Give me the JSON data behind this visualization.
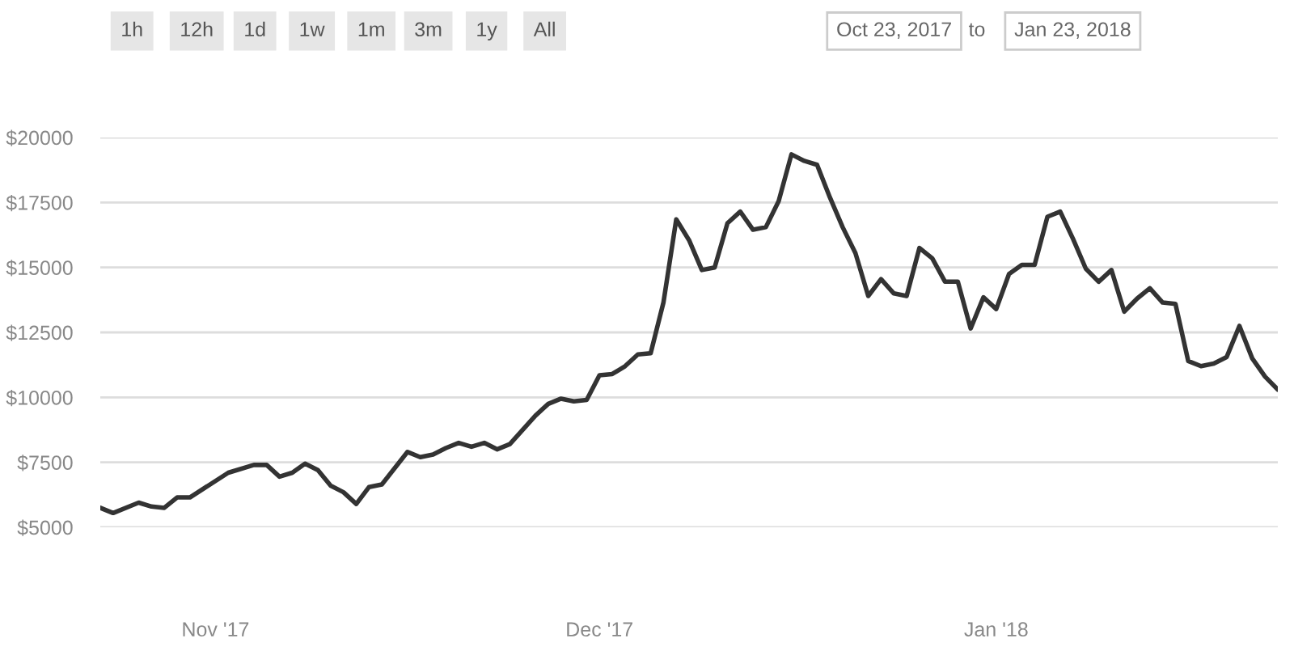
{
  "chart_data": {
    "type": "line",
    "x": [
      "2017-10-23",
      "2017-10-24",
      "2017-10-26",
      "2017-10-27",
      "2017-10-28",
      "2017-10-29",
      "2017-10-30",
      "2017-11-02",
      "2017-11-04",
      "2017-11-05",
      "2017-11-06",
      "2017-11-07",
      "2017-11-08",
      "2017-11-09",
      "2017-11-10",
      "2017-11-11",
      "2017-11-12",
      "2017-11-13",
      "2017-11-14",
      "2017-11-16",
      "2017-11-17",
      "2017-11-18",
      "2017-11-19",
      "2017-11-20",
      "2017-11-21",
      "2017-11-22",
      "2017-11-23",
      "2017-11-24",
      "2017-11-26",
      "2017-11-27",
      "2017-11-28",
      "2017-11-29",
      "2017-11-30",
      "2017-12-01",
      "2017-12-02",
      "2017-12-03",
      "2017-12-04",
      "2017-12-05",
      "2017-12-06",
      "2017-12-07",
      "2017-12-08",
      "2017-12-09",
      "2017-12-10",
      "2017-12-11",
      "2017-12-12",
      "2017-12-13",
      "2017-12-14",
      "2017-12-15",
      "2017-12-16",
      "2017-12-17",
      "2017-12-18",
      "2017-12-19",
      "2017-12-20",
      "2017-12-21",
      "2017-12-22",
      "2017-12-23",
      "2017-12-24",
      "2017-12-25",
      "2017-12-26",
      "2017-12-27",
      "2017-12-28",
      "2017-12-29",
      "2017-12-30",
      "2017-12-31",
      "2018-01-01",
      "2018-01-02",
      "2018-01-03",
      "2018-01-04",
      "2018-01-05",
      "2018-01-06",
      "2018-01-07",
      "2018-01-08",
      "2018-01-09",
      "2018-01-10",
      "2018-01-11",
      "2018-01-12",
      "2018-01-13",
      "2018-01-14",
      "2018-01-15",
      "2018-01-16",
      "2018-01-17",
      "2018-01-18",
      "2018-01-19",
      "2018-01-20",
      "2018-01-21",
      "2018-01-22",
      "2018-01-23"
    ],
    "series": [
      {
        "color": "#333333",
        "values": [
          5750,
          5550,
          5950,
          5800,
          5750,
          6150,
          6150,
          7100,
          7400,
          7400,
          6950,
          7100,
          7450,
          7200,
          6600,
          6350,
          5900,
          6550,
          6650,
          7900,
          7700,
          7800,
          8050,
          8250,
          8100,
          8250,
          8000,
          8200,
          9300,
          9750,
          9950,
          9850,
          9900,
          10850,
          10900,
          11200,
          11650,
          11700,
          13650,
          16850,
          16050,
          14900,
          15000,
          16700,
          17150,
          16450,
          16550,
          17550,
          19350,
          19100,
          18950,
          17700,
          16550,
          15550,
          13900,
          14550,
          14000,
          13900,
          15750,
          15350,
          14450,
          14450,
          12650,
          13850,
          13400,
          14750,
          15100,
          15100,
          16950,
          17150,
          16100,
          14950,
          14450,
          14900,
          13300,
          13800,
          14200,
          13650,
          13600,
          11400,
          11200,
          11300,
          11550,
          12750,
          11500,
          10800,
          10300
        ]
      }
    ],
    "ylim": [
      5000,
      20000
    ],
    "yticks": [
      {
        "value": 5000,
        "label": "$5000"
      },
      {
        "value": 7500,
        "label": "$7500"
      },
      {
        "value": 10000,
        "label": "$10000"
      },
      {
        "value": 12500,
        "label": "$12500"
      },
      {
        "value": 15000,
        "label": "$15000"
      },
      {
        "value": 17500,
        "label": "$17500"
      },
      {
        "value": 20000,
        "label": "$20000"
      }
    ],
    "xlim": [
      "2017-10-23",
      "2018-01-23"
    ],
    "xticks": [
      {
        "value": "2017-11-01",
        "label": "Nov '17"
      },
      {
        "value": "2017-12-01",
        "label": "Dec '17"
      },
      {
        "value": "2018-01-01",
        "label": "Jan '18"
      }
    ],
    "grid": "y",
    "marker": "none",
    "line_style": "solid",
    "annotations": [
      "1h",
      "12h",
      "1d",
      "1w",
      "1m",
      "3m",
      "1y",
      "All",
      "Oct 23, 2017",
      "to",
      "Jan 23, 2018"
    ]
  }
}
